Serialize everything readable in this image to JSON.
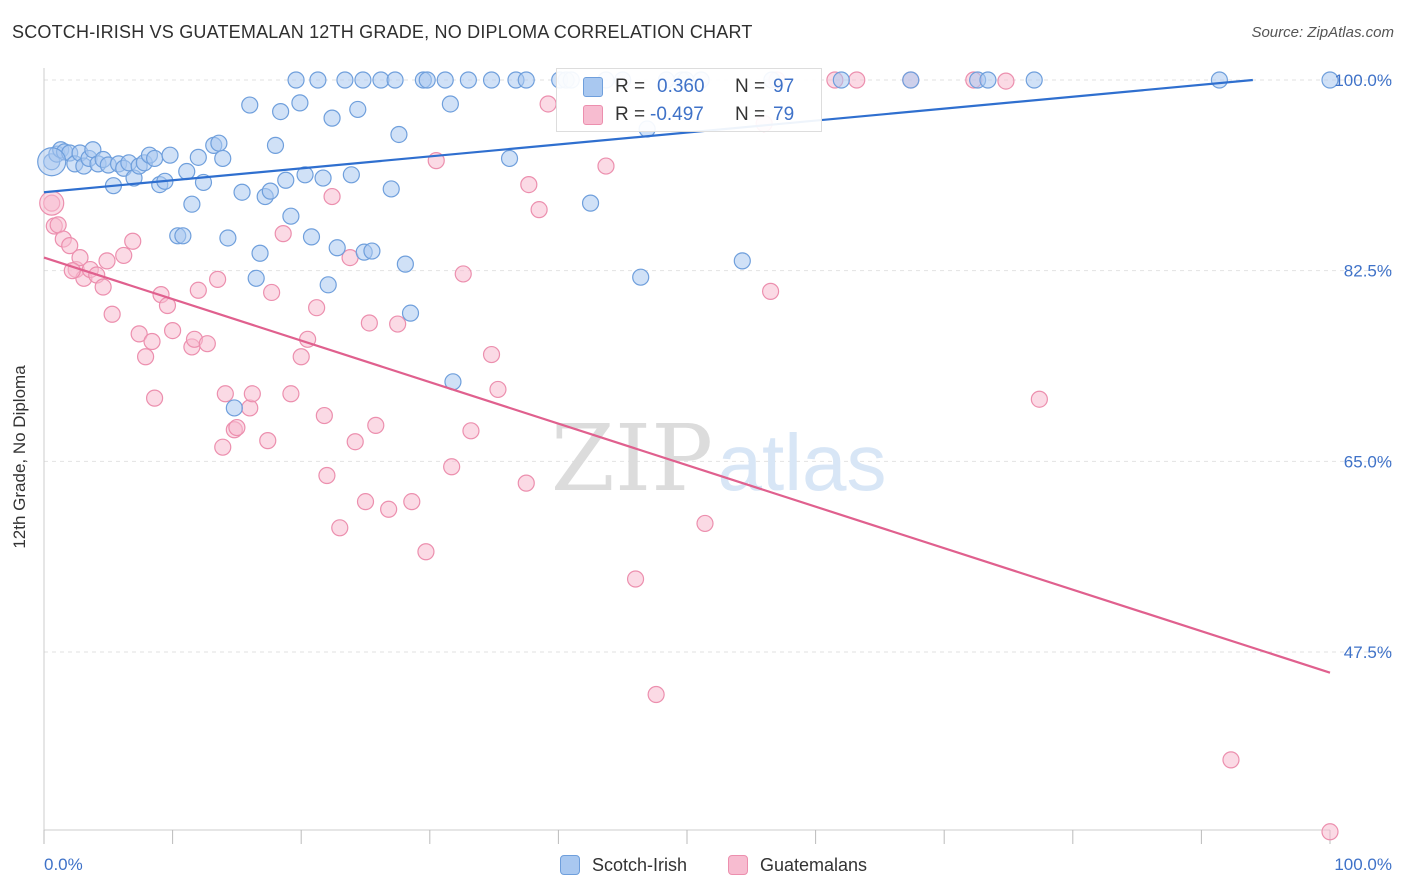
{
  "header": {
    "title": "SCOTCH-IRISH VS GUATEMALAN 12TH GRADE, NO DIPLOMA CORRELATION CHART",
    "source": "Source: ZipAtlas.com"
  },
  "watermark": {
    "part1": "ZIP",
    "part2": "atlas"
  },
  "colors": {
    "blue_fill": "#a9c8f0",
    "blue_stroke": "#6f9fdc",
    "blue_line": "#2f6fcf",
    "pink_fill": "#f7bcd0",
    "pink_stroke": "#ec8fae",
    "pink_line": "#e0608e",
    "axis_text": "#3f72c8"
  },
  "stats_legend": {
    "rows": [
      {
        "r_label": "R =",
        "r_value": "0.360",
        "n_label": "N =",
        "n_value": "97"
      },
      {
        "r_label": "R =",
        "r_value": "-0.497",
        "n_label": "N =",
        "n_value": "79"
      }
    ]
  },
  "chart_data": {
    "type": "scatter",
    "title": "SCOTCH-IRISH VS GUATEMALAN 12TH GRADE, NO DIPLOMA CORRELATION CHART",
    "xlabel": "",
    "ylabel": "12th Grade, No Diploma",
    "xlim": [
      0,
      100
    ],
    "ylim": [
      30,
      101.5
    ],
    "x_tick_labels": [
      "0.0%",
      "100.0%"
    ],
    "y_ticks": [
      47.5,
      65.0,
      82.5,
      100.0
    ],
    "y_tick_labels": [
      "47.5%",
      "65.0%",
      "82.5%",
      "100.0%"
    ],
    "grid": "horizontal dashed",
    "legend_position": "bottom",
    "series": [
      {
        "name": "Scotch-Irish",
        "color": "#a9c8f0",
        "R": 0.36,
        "N": 97,
        "trend": {
          "x": [
            0,
            94
          ],
          "y": [
            89.7,
            100.0
          ]
        },
        "points": [
          [
            0.6,
            92.5
          ],
          [
            1.0,
            93.2
          ],
          [
            1.3,
            93.6
          ],
          [
            1.6,
            93.4
          ],
          [
            2.0,
            93.3
          ],
          [
            2.4,
            92.3
          ],
          [
            2.8,
            93.3
          ],
          [
            3.1,
            92.1
          ],
          [
            3.5,
            92.8
          ],
          [
            3.8,
            93.6
          ],
          [
            4.2,
            92.3
          ],
          [
            4.6,
            92.7
          ],
          [
            5.0,
            92.2
          ],
          [
            5.4,
            90.3
          ],
          [
            5.8,
            92.3
          ],
          [
            6.2,
            91.9
          ],
          [
            6.6,
            92.4
          ],
          [
            7.0,
            91.0
          ],
          [
            7.4,
            92.1
          ],
          [
            7.8,
            92.4
          ],
          [
            8.2,
            93.1
          ],
          [
            8.6,
            92.8
          ],
          [
            9.0,
            90.4
          ],
          [
            9.4,
            90.7
          ],
          [
            9.8,
            93.1
          ],
          [
            10.4,
            85.7
          ],
          [
            10.8,
            85.7
          ],
          [
            11.1,
            91.6
          ],
          [
            11.5,
            88.6
          ],
          [
            12.0,
            92.9
          ],
          [
            12.4,
            90.6
          ],
          [
            13.2,
            94.0
          ],
          [
            13.6,
            94.2
          ],
          [
            13.9,
            92.8
          ],
          [
            14.3,
            85.5
          ],
          [
            14.8,
            69.9
          ],
          [
            15.4,
            89.7
          ],
          [
            16.0,
            97.7
          ],
          [
            16.5,
            81.8
          ],
          [
            16.8,
            84.1
          ],
          [
            17.2,
            89.3
          ],
          [
            17.6,
            89.8
          ],
          [
            18.0,
            94.0
          ],
          [
            18.4,
            97.1
          ],
          [
            18.8,
            90.8
          ],
          [
            19.2,
            87.5
          ],
          [
            19.6,
            100.0
          ],
          [
            19.9,
            97.9
          ],
          [
            20.3,
            91.3
          ],
          [
            20.8,
            85.6
          ],
          [
            21.3,
            100.0
          ],
          [
            21.7,
            91.0
          ],
          [
            22.1,
            81.2
          ],
          [
            22.4,
            96.5
          ],
          [
            22.8,
            84.6
          ],
          [
            23.4,
            100.0
          ],
          [
            23.9,
            91.3
          ],
          [
            24.4,
            97.3
          ],
          [
            24.8,
            100.0
          ],
          [
            24.9,
            84.2
          ],
          [
            25.5,
            84.3
          ],
          [
            26.2,
            100.0
          ],
          [
            27.0,
            90.0
          ],
          [
            27.3,
            100.0
          ],
          [
            27.6,
            95.0
          ],
          [
            28.1,
            83.1
          ],
          [
            28.5,
            78.6
          ],
          [
            29.5,
            100.0
          ],
          [
            29.8,
            100.0
          ],
          [
            31.2,
            100.0
          ],
          [
            31.6,
            97.8
          ],
          [
            31.8,
            72.3
          ],
          [
            33.0,
            100.0
          ],
          [
            34.8,
            100.0
          ],
          [
            36.2,
            92.8
          ],
          [
            36.7,
            100.0
          ],
          [
            37.5,
            100.0
          ],
          [
            40.1,
            100.0
          ],
          [
            40.6,
            100.0
          ],
          [
            41.0,
            100.0
          ],
          [
            42.5,
            88.7
          ],
          [
            43.7,
            100.0
          ],
          [
            45.0,
            100.0
          ],
          [
            46.4,
            81.9
          ],
          [
            48.4,
            100.0
          ],
          [
            49.6,
            100.0
          ],
          [
            49.9,
            100.0
          ],
          [
            51.1,
            100.0
          ],
          [
            54.3,
            83.4
          ],
          [
            56.6,
            100.0
          ],
          [
            62.0,
            100.0
          ],
          [
            67.4,
            100.0
          ],
          [
            72.6,
            100.0
          ],
          [
            73.4,
            100.0
          ],
          [
            77.0,
            100.0
          ],
          [
            91.4,
            100.0
          ],
          [
            100.0,
            100.0
          ],
          [
            46.9,
            95.5
          ]
        ]
      },
      {
        "name": "Guatemalans",
        "color": "#f7bcd0",
        "R": -0.497,
        "N": 79,
        "trend": {
          "x": [
            0,
            100
          ],
          "y": [
            83.7,
            45.6
          ]
        },
        "points": [
          [
            0.6,
            88.7
          ],
          [
            0.8,
            86.6
          ],
          [
            1.1,
            86.7
          ],
          [
            1.5,
            85.4
          ],
          [
            2.0,
            84.8
          ],
          [
            2.5,
            82.6
          ],
          [
            2.8,
            83.7
          ],
          [
            3.1,
            81.8
          ],
          [
            3.6,
            82.6
          ],
          [
            4.1,
            82.1
          ],
          [
            4.6,
            81.0
          ],
          [
            4.9,
            83.4
          ],
          [
            5.3,
            78.5
          ],
          [
            6.2,
            83.9
          ],
          [
            6.9,
            85.2
          ],
          [
            7.4,
            76.7
          ],
          [
            7.9,
            74.6
          ],
          [
            8.4,
            76.0
          ],
          [
            8.6,
            70.8
          ],
          [
            9.1,
            80.3
          ],
          [
            9.6,
            79.3
          ],
          [
            10.0,
            77.0
          ],
          [
            11.5,
            75.5
          ],
          [
            11.7,
            76.2
          ],
          [
            12.0,
            80.7
          ],
          [
            12.7,
            75.8
          ],
          [
            13.5,
            81.7
          ],
          [
            13.9,
            66.3
          ],
          [
            14.1,
            71.2
          ],
          [
            14.8,
            67.9
          ],
          [
            15.0,
            68.1
          ],
          [
            16.0,
            69.9
          ],
          [
            16.2,
            71.2
          ],
          [
            17.4,
            66.9
          ],
          [
            17.7,
            80.5
          ],
          [
            18.6,
            85.9
          ],
          [
            19.2,
            71.2
          ],
          [
            20.0,
            74.6
          ],
          [
            20.5,
            76.2
          ],
          [
            21.2,
            79.1
          ],
          [
            21.8,
            69.2
          ],
          [
            22.0,
            63.7
          ],
          [
            22.4,
            89.3
          ],
          [
            23.0,
            58.9
          ],
          [
            23.8,
            83.7
          ],
          [
            24.2,
            66.8
          ],
          [
            25.0,
            61.3
          ],
          [
            25.3,
            77.7
          ],
          [
            25.8,
            68.3
          ],
          [
            26.8,
            60.6
          ],
          [
            27.5,
            77.6
          ],
          [
            28.6,
            61.3
          ],
          [
            29.7,
            56.7
          ],
          [
            30.5,
            92.6
          ],
          [
            31.7,
            64.5
          ],
          [
            32.6,
            82.2
          ],
          [
            33.2,
            67.8
          ],
          [
            34.8,
            74.8
          ],
          [
            35.3,
            71.6
          ],
          [
            37.5,
            63.0
          ],
          [
            37.7,
            90.4
          ],
          [
            38.5,
            88.1
          ],
          [
            39.2,
            97.8
          ],
          [
            43.7,
            92.1
          ],
          [
            46.0,
            54.2
          ],
          [
            47.6,
            43.6
          ],
          [
            51.4,
            59.3
          ],
          [
            56.0,
            96.0
          ],
          [
            56.5,
            80.6
          ],
          [
            57.0,
            100.0
          ],
          [
            61.5,
            100.0
          ],
          [
            63.2,
            100.0
          ],
          [
            67.4,
            100.0
          ],
          [
            72.3,
            100.0
          ],
          [
            74.8,
            99.9
          ],
          [
            77.4,
            70.7
          ],
          [
            92.3,
            37.6
          ],
          [
            100.0,
            31.0
          ],
          [
            2.2,
            82.5
          ]
        ]
      }
    ]
  }
}
